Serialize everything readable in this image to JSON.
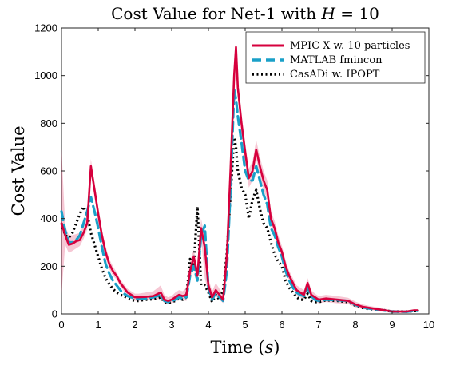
{
  "chart_data": {
    "type": "line",
    "title": "Cost Value for Net-1 with H = 10",
    "title_parts": {
      "prefix": "Cost Value for Net-1 with ",
      "var": "H",
      "suffix": " = 10"
    },
    "xlabel": "Time (s)",
    "xlabel_parts": {
      "prefix": "Time (",
      "var": "s",
      "suffix": ")"
    },
    "ylabel": "Cost Value",
    "xlim": [
      0,
      10
    ],
    "ylim": [
      0,
      1200
    ],
    "xticks": [
      0,
      1,
      2,
      3,
      4,
      5,
      6,
      7,
      8,
      9,
      10
    ],
    "yticks": [
      0,
      200,
      400,
      600,
      800,
      1000,
      1200
    ],
    "grid": false,
    "legend_position": "top-right",
    "series": [
      {
        "name": "MPIC-X w. 10 particles",
        "color": "#d6003d",
        "style": "solid",
        "x": [
          0,
          0.1,
          0.2,
          0.3,
          0.4,
          0.5,
          0.6,
          0.7,
          0.8,
          0.9,
          1.0,
          1.1,
          1.2,
          1.3,
          1.4,
          1.5,
          1.6,
          1.7,
          1.8,
          1.9,
          2.0,
          2.1,
          2.3,
          2.5,
          2.7,
          2.8,
          2.9,
          3.0,
          3.1,
          3.2,
          3.3,
          3.4,
          3.5,
          3.6,
          3.7,
          3.8,
          3.9,
          4.0,
          4.1,
          4.2,
          4.3,
          4.4,
          4.5,
          4.6,
          4.7,
          4.75,
          4.8,
          4.9,
          5.0,
          5.1,
          5.2,
          5.3,
          5.4,
          5.5,
          5.6,
          5.7,
          5.8,
          5.9,
          6.0,
          6.1,
          6.2,
          6.3,
          6.4,
          6.5,
          6.6,
          6.7,
          6.8,
          6.9,
          7.0,
          7.2,
          7.5,
          7.8,
          8.0,
          8.2,
          8.4,
          8.6,
          8.8,
          9.0,
          9.2,
          9.4,
          9.6,
          9.7
        ],
        "y": [
          380,
          330,
          290,
          295,
          305,
          310,
          340,
          380,
          620,
          520,
          420,
          330,
          260,
          210,
          180,
          160,
          130,
          110,
          90,
          80,
          70,
          70,
          72,
          75,
          90,
          60,
          55,
          60,
          70,
          80,
          75,
          80,
          180,
          240,
          160,
          360,
          280,
          120,
          70,
          100,
          80,
          60,
          240,
          600,
          1000,
          1120,
          950,
          800,
          680,
          570,
          600,
          690,
          620,
          560,
          520,
          400,
          360,
          300,
          260,
          200,
          160,
          130,
          100,
          90,
          80,
          130,
          80,
          70,
          60,
          65,
          60,
          55,
          40,
          30,
          25,
          20,
          15,
          10,
          10,
          10,
          15,
          15
        ],
        "band_upper": [
          700,
          370,
          330,
          330,
          335,
          340,
          370,
          410,
          650,
          550,
          450,
          355,
          285,
          230,
          200,
          175,
          145,
          125,
          105,
          95,
          85,
          85,
          90,
          95,
          120,
          80,
          70,
          75,
          90,
          100,
          95,
          110,
          220,
          270,
          190,
          400,
          320,
          150,
          95,
          130,
          105,
          80,
          290,
          660,
          1060,
          1150,
          990,
          840,
          720,
          610,
          640,
          730,
          660,
          600,
          560,
          430,
          390,
          330,
          285,
          225,
          180,
          150,
          120,
          110,
          100,
          150,
          100,
          85,
          75,
          80,
          75,
          68,
          52,
          40,
          33,
          28,
          22,
          16,
          15,
          15,
          20,
          20
        ],
        "band_lower": [
          80,
          290,
          255,
          265,
          275,
          285,
          315,
          355,
          590,
          490,
          390,
          305,
          235,
          190,
          160,
          145,
          115,
          95,
          75,
          65,
          55,
          55,
          58,
          58,
          65,
          45,
          42,
          45,
          52,
          60,
          58,
          55,
          140,
          210,
          130,
          320,
          150,
          90,
          50,
          75,
          60,
          45,
          190,
          540,
          940,
          1090,
          910,
          760,
          640,
          530,
          560,
          650,
          580,
          520,
          480,
          370,
          330,
          270,
          235,
          175,
          140,
          110,
          80,
          70,
          60,
          110,
          60,
          55,
          45,
          50,
          45,
          42,
          28,
          20,
          17,
          12,
          8,
          4,
          5,
          5,
          10,
          10
        ]
      },
      {
        "name": "MATLAB fmincon",
        "color": "#1aa0c8",
        "style": "dashed",
        "x": [
          0,
          0.1,
          0.2,
          0.3,
          0.4,
          0.5,
          0.6,
          0.7,
          0.8,
          0.9,
          1.0,
          1.1,
          1.2,
          1.3,
          1.4,
          1.5,
          1.6,
          1.7,
          1.8,
          1.9,
          2.0,
          2.1,
          2.3,
          2.5,
          2.7,
          2.8,
          2.9,
          3.0,
          3.1,
          3.2,
          3.3,
          3.4,
          3.5,
          3.6,
          3.7,
          3.8,
          3.9,
          4.0,
          4.1,
          4.2,
          4.3,
          4.4,
          4.5,
          4.6,
          4.7,
          4.75,
          4.8,
          4.9,
          5.0,
          5.1,
          5.2,
          5.3,
          5.4,
          5.5,
          5.6,
          5.7,
          5.8,
          5.9,
          6.0,
          6.1,
          6.2,
          6.3,
          6.4,
          6.5,
          6.6,
          6.7,
          6.8,
          6.9,
          7.0,
          7.2,
          7.5,
          7.8,
          8.0,
          8.2,
          8.4,
          8.6,
          8.8,
          9.0,
          9.2,
          9.4,
          9.6,
          9.7
        ],
        "y": [
          430,
          350,
          300,
          300,
          310,
          330,
          380,
          430,
          490,
          430,
          360,
          280,
          210,
          170,
          140,
          120,
          100,
          85,
          75,
          70,
          65,
          62,
          65,
          70,
          80,
          55,
          50,
          55,
          60,
          70,
          65,
          70,
          160,
          200,
          140,
          330,
          370,
          110,
          60,
          90,
          70,
          55,
          180,
          520,
          940,
          900,
          830,
          720,
          600,
          560,
          560,
          620,
          560,
          500,
          460,
          360,
          330,
          280,
          240,
          180,
          140,
          110,
          90,
          80,
          75,
          110,
          75,
          60,
          55,
          60,
          58,
          55,
          38,
          28,
          22,
          18,
          14,
          10,
          9,
          9,
          13,
          13
        ]
      },
      {
        "name": "CasADi w. IPOPT",
        "color": "#000000",
        "style": "dotted",
        "x": [
          0,
          0.1,
          0.2,
          0.3,
          0.4,
          0.5,
          0.6,
          0.7,
          0.8,
          0.9,
          1.0,
          1.1,
          1.2,
          1.3,
          1.4,
          1.5,
          1.6,
          1.7,
          1.8,
          1.9,
          2.0,
          2.1,
          2.3,
          2.5,
          2.7,
          2.8,
          2.9,
          3.0,
          3.1,
          3.2,
          3.3,
          3.4,
          3.5,
          3.6,
          3.7,
          3.8,
          3.9,
          4.0,
          4.1,
          4.2,
          4.3,
          4.4,
          4.5,
          4.6,
          4.7,
          4.75,
          4.8,
          4.9,
          5.0,
          5.1,
          5.2,
          5.3,
          5.4,
          5.5,
          5.6,
          5.7,
          5.8,
          5.9,
          6.0,
          6.1,
          6.2,
          6.3,
          6.4,
          6.5,
          6.6,
          6.7,
          6.8,
          6.9,
          7.0,
          7.2,
          7.5,
          7.8,
          8.0,
          8.2,
          8.4,
          8.6,
          8.8,
          9.0,
          9.2,
          9.4,
          9.6,
          9.7
        ],
        "y": [
          380,
          330,
          320,
          340,
          380,
          420,
          450,
          420,
          340,
          290,
          240,
          190,
          150,
          125,
          105,
          90,
          80,
          75,
          65,
          60,
          55,
          55,
          60,
          62,
          70,
          50,
          45,
          50,
          55,
          65,
          60,
          70,
          230,
          200,
          450,
          120,
          120,
          90,
          50,
          80,
          60,
          100,
          250,
          500,
          740,
          700,
          600,
          530,
          500,
          400,
          480,
          520,
          440,
          380,
          360,
          300,
          250,
          220,
          200,
          140,
          110,
          90,
          70,
          60,
          60,
          85,
          55,
          50,
          50,
          58,
          55,
          50,
          35,
          25,
          20,
          18,
          15,
          10,
          10,
          10,
          12,
          12
        ]
      }
    ]
  }
}
